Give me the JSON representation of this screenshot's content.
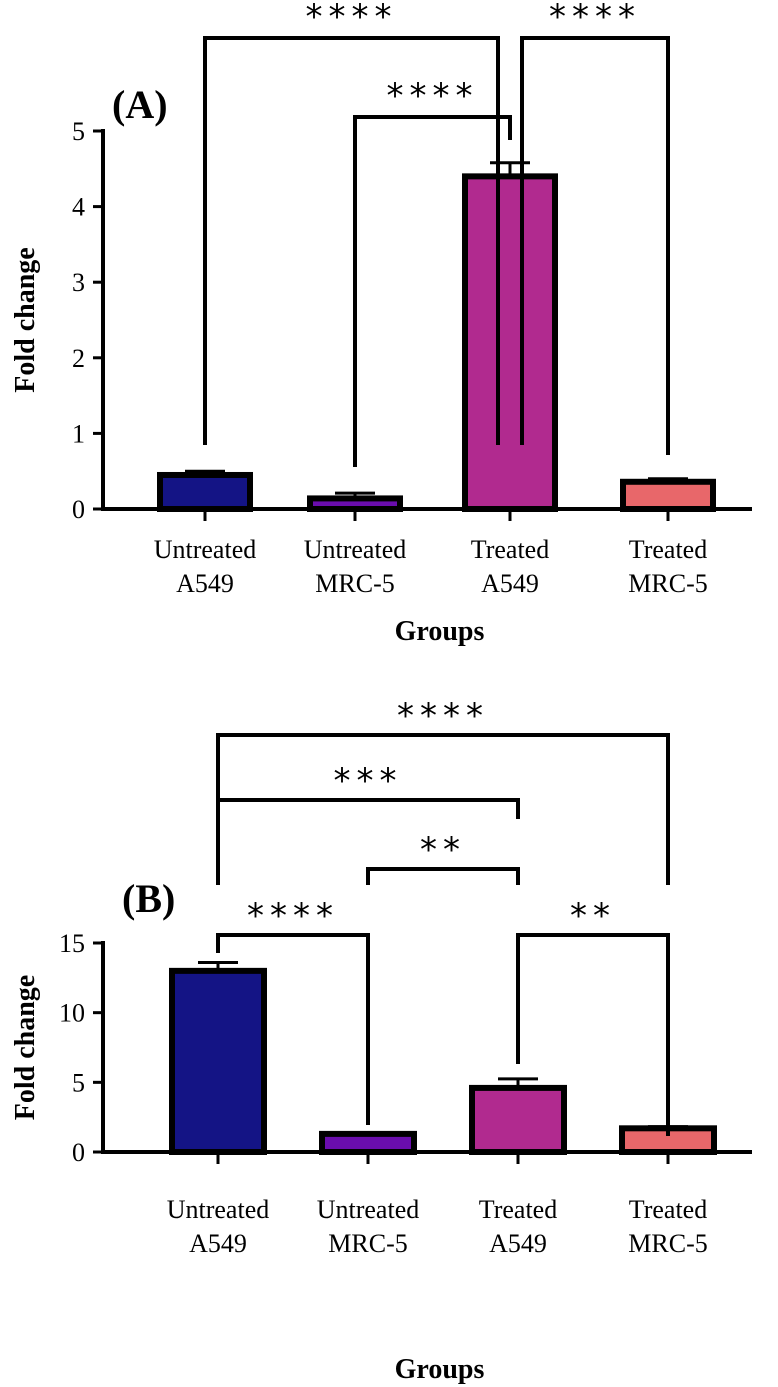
{
  "chart_data": [
    {
      "type": "bar",
      "panel": "(A)",
      "categories": [
        [
          "Untreated",
          "A549"
        ],
        [
          "Untreated",
          "MRC-5"
        ],
        [
          "Treated",
          "A549"
        ],
        [
          "Treated",
          "MRC-5"
        ]
      ],
      "values": [
        0.45,
        0.14,
        4.4,
        0.36
      ],
      "errors": [
        0.05,
        0.07,
        0.18,
        0.04
      ],
      "colors": [
        "#141485",
        "#6a0dad",
        "#b12a8f",
        "#e8676a"
      ],
      "ylabel": "Fold change",
      "xlabel": "Groups",
      "ylim": [
        0,
        5
      ],
      "yticks": [
        0,
        1,
        2,
        3,
        4,
        5
      ],
      "significance": [
        {
          "from": 0,
          "to": 2,
          "label": "****"
        },
        {
          "from": 2,
          "to": 3,
          "label": "****"
        },
        {
          "from": 1,
          "to": 2,
          "label": "****"
        }
      ]
    },
    {
      "type": "bar",
      "panel": "(B)",
      "categories": [
        [
          "Untreated",
          "A549"
        ],
        [
          "Untreated",
          "MRC-5"
        ],
        [
          "Treated",
          "A549"
        ],
        [
          "Treated",
          "MRC-5"
        ]
      ],
      "values": [
        13.0,
        1.3,
        4.6,
        1.7
      ],
      "errors": [
        0.6,
        0.08,
        0.65,
        0.12
      ],
      "colors": [
        "#141485",
        "#6a0dad",
        "#b12a8f",
        "#e8676a"
      ],
      "ylabel": "Fold change",
      "xlabel": "Groups",
      "ylim": [
        0,
        15
      ],
      "yticks": [
        0,
        5,
        10,
        15
      ],
      "significance": [
        {
          "from": 0,
          "to": 3,
          "label": "****"
        },
        {
          "from": 0,
          "to": 2,
          "label": "***"
        },
        {
          "from": 1,
          "to": 2,
          "label": "**"
        },
        {
          "from": 0,
          "to": 1,
          "label": "****"
        },
        {
          "from": 2,
          "to": 3,
          "label": "**"
        }
      ]
    }
  ]
}
